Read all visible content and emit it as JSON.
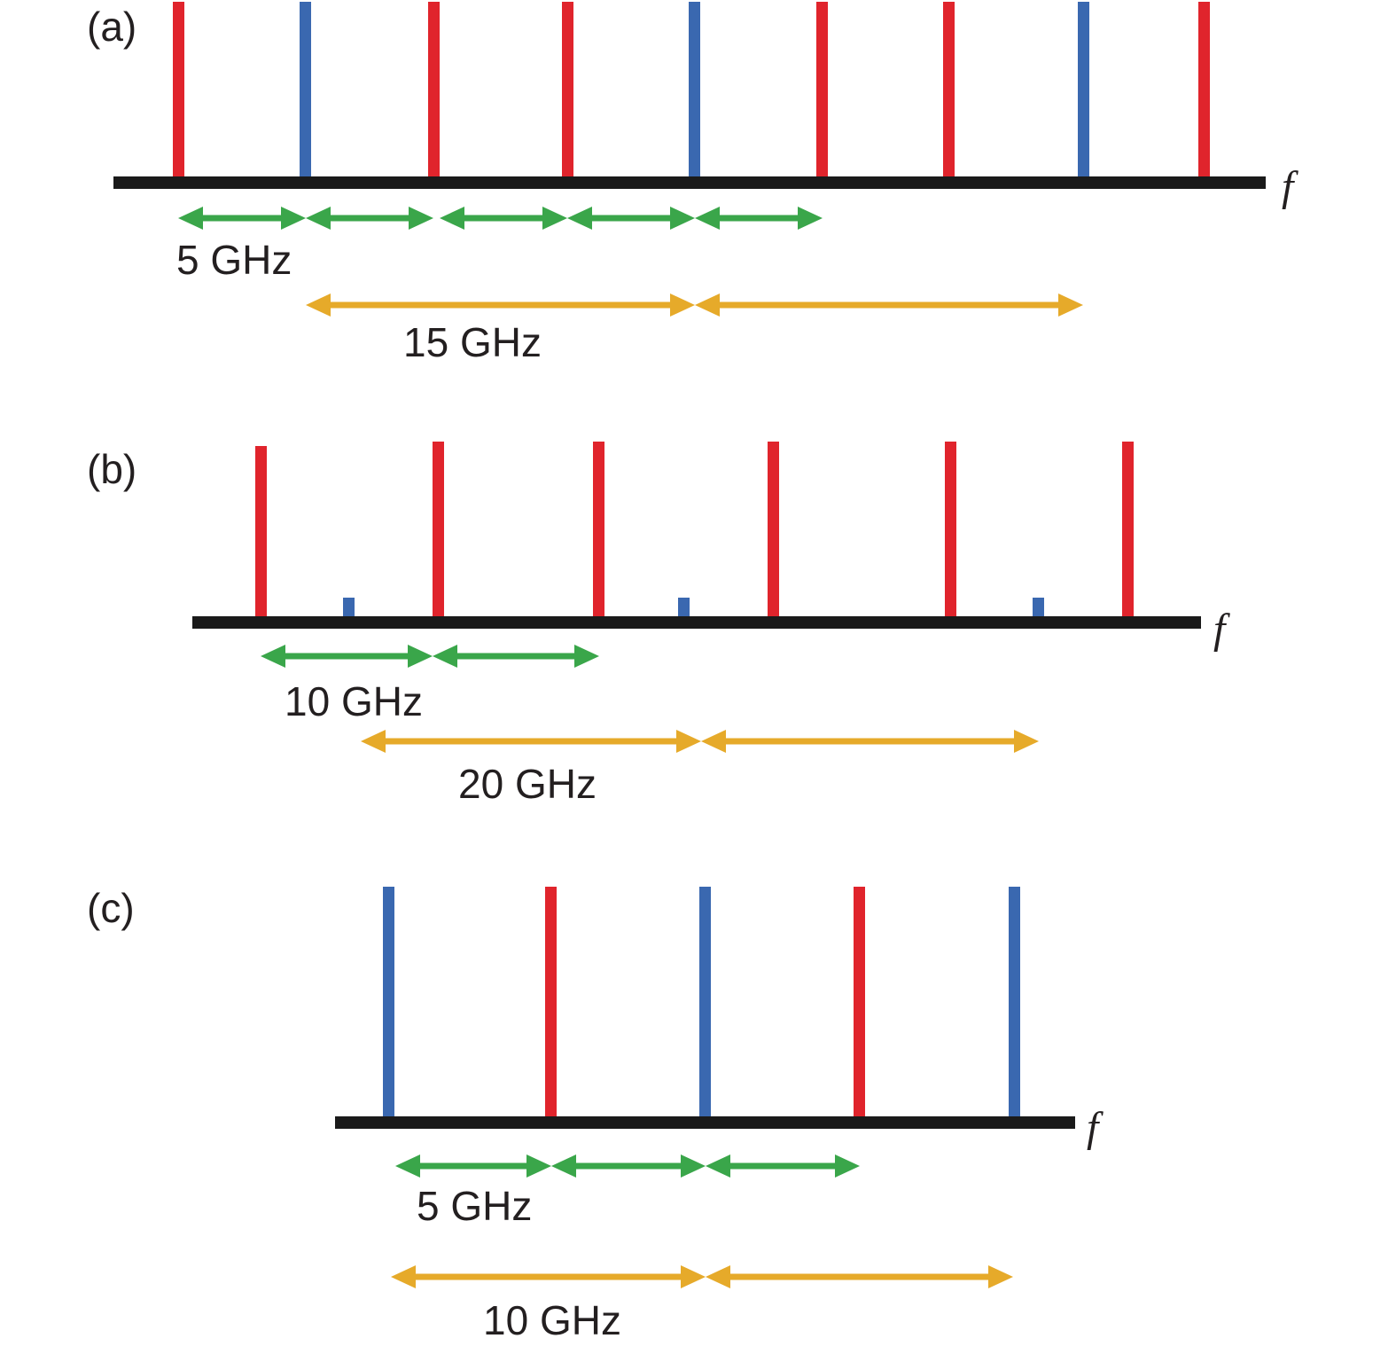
{
  "colors": {
    "carrier_red": "#e0242c",
    "carrier_blue": "#3a68b0",
    "axis_black": "#1a1a1a",
    "arrow_green": "#3aa64a",
    "arrow_yellow": "#e6aa2a",
    "text": "#231f20"
  },
  "panels": [
    {
      "id": "a",
      "label": "(a)",
      "axis_label": "f",
      "lines": [
        {
          "color": "red",
          "level": "full"
        },
        {
          "color": "blue",
          "level": "full"
        },
        {
          "color": "red",
          "level": "full"
        },
        {
          "color": "red",
          "level": "full"
        },
        {
          "color": "blue",
          "level": "full"
        },
        {
          "color": "red",
          "level": "full"
        },
        {
          "color": "red",
          "level": "full"
        },
        {
          "color": "blue",
          "level": "full"
        },
        {
          "color": "red",
          "level": "full"
        }
      ],
      "green_spacing_label": "5 GHz",
      "yellow_spacing_label": "15 GHz"
    },
    {
      "id": "b",
      "label": "(b)",
      "axis_label": "f",
      "lines": [
        {
          "color": "red",
          "level": "full"
        },
        {
          "color": "blue",
          "level": "small"
        },
        {
          "color": "red",
          "level": "full"
        },
        {
          "color": "red",
          "level": "full"
        },
        {
          "color": "blue",
          "level": "small"
        },
        {
          "color": "red",
          "level": "full"
        },
        {
          "color": "red",
          "level": "full"
        },
        {
          "color": "blue",
          "level": "small"
        },
        {
          "color": "red",
          "level": "full"
        }
      ],
      "green_spacing_label": "10 GHz",
      "yellow_spacing_label": "20 GHz"
    },
    {
      "id": "c",
      "label": "(c)",
      "axis_label": "f",
      "lines": [
        {
          "color": "blue",
          "level": "full"
        },
        {
          "color": "red",
          "level": "full"
        },
        {
          "color": "blue",
          "level": "full"
        },
        {
          "color": "red",
          "level": "full"
        },
        {
          "color": "blue",
          "level": "full"
        }
      ],
      "green_spacing_label": "5 GHz",
      "yellow_spacing_label": "10 GHz"
    }
  ]
}
